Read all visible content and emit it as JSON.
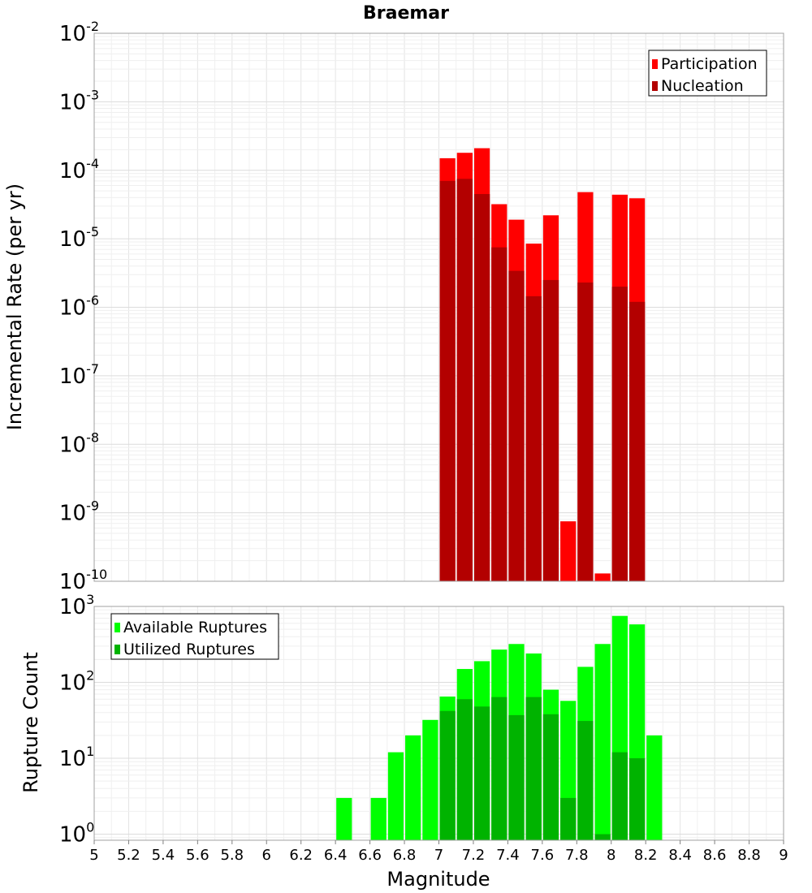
{
  "chart_data": {
    "title": "Braemar",
    "xlabel": "Magnitude",
    "xlim": [
      5,
      9
    ],
    "xticks": [
      "5",
      "5.2",
      "5.4",
      "5.6",
      "5.8",
      "6",
      "6.2",
      "6.4",
      "6.6",
      "6.8",
      "7",
      "7.2",
      "7.4",
      "7.6",
      "7.8",
      "8",
      "8.2",
      "8.4",
      "8.6",
      "8.8",
      "9"
    ],
    "grid": true,
    "panels": [
      {
        "type": "bar",
        "ylabel": "Incremental Rate (per yr)",
        "yscale": "log",
        "ylim_exp": [
          -10,
          -2
        ],
        "ytick_base": "10",
        "ytick_exps": [
          "-10",
          "-9",
          "-8",
          "-7",
          "-6",
          "-5",
          "-4",
          "-3",
          "-2"
        ],
        "legend_position": "top-right",
        "x": [
          7.05,
          7.15,
          7.25,
          7.35,
          7.45,
          7.55,
          7.65,
          7.75,
          7.85,
          7.95,
          8.05,
          8.15
        ],
        "series": [
          {
            "name": "Participation",
            "color": "#ff0000",
            "values": [
              0.00015,
              0.00018,
              0.00021,
              3.2e-05,
              1.9e-05,
              8.5e-06,
              2.2e-05,
              7.5e-10,
              4.8e-05,
              1.3e-10,
              4.4e-05,
              3.9e-05
            ]
          },
          {
            "name": "Nucleation",
            "color": "#b30000",
            "values": [
              7e-05,
              7.5e-05,
              4.5e-05,
              7.5e-06,
              3.4e-06,
              1.45e-06,
              2.5e-06,
              null,
              2.3e-06,
              null,
              2e-06,
              1.2e-06
            ]
          }
        ]
      },
      {
        "type": "bar",
        "ylabel": "Rupture Count",
        "yscale": "log",
        "ylim_exp": [
          -0.08,
          3
        ],
        "ytick_base": "10",
        "ytick_exps": [
          "0",
          "1",
          "2",
          "3"
        ],
        "legend_position": "top-left",
        "x": [
          6.45,
          6.55,
          6.65,
          6.75,
          6.85,
          6.95,
          7.05,
          7.15,
          7.25,
          7.35,
          7.45,
          7.55,
          7.65,
          7.75,
          7.85,
          7.95,
          8.05,
          8.15,
          8.25
        ],
        "series": [
          {
            "name": "Available Ruptures",
            "color": "#00ff00",
            "values": [
              3,
              null,
              3,
              12,
              20,
              32,
              65,
              150,
              190,
              270,
              320,
              240,
              80,
              57,
              160,
              320,
              750,
              580,
              20
            ]
          },
          {
            "name": "Utilized Ruptures",
            "color": "#00b300",
            "values": [
              null,
              null,
              null,
              null,
              null,
              null,
              42,
              60,
              48,
              64,
              37,
              64,
              38,
              3,
              31,
              1,
              12,
              10,
              null
            ]
          }
        ]
      }
    ]
  }
}
